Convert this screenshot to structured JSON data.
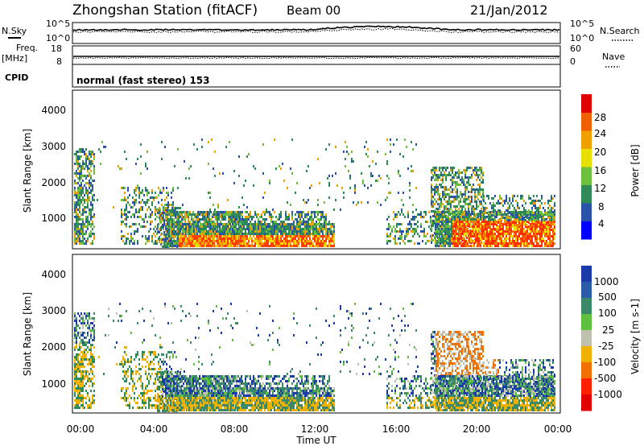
{
  "header": {
    "title": "Zhongshan Station (fitACF)",
    "beam": "Beam 00",
    "date": "21/Jan/2012"
  },
  "top_panels": {
    "nsky_label": "N.Sky",
    "nsearch_label": "N.Search",
    "nsky_ticks": [
      "10^5",
      "10^0"
    ],
    "nsearch_ticks": [
      "10^5",
      "10^0"
    ],
    "freq_label": "Freq.",
    "freq_unit": "[MHz]",
    "freq_ticks": [
      "18",
      "8"
    ],
    "nave_label": "Nave",
    "nave_ticks": [
      "60",
      "0"
    ],
    "cpid_label": "CPID",
    "cpid_text": "normal (fast stereo) 153"
  },
  "chart_data": [
    {
      "type": "heatmap",
      "name": "power",
      "ylabel": "Slant Range [km]",
      "yticks": [
        "4000",
        "3000",
        "2000",
        "1000"
      ],
      "ylim": [
        200,
        4500
      ],
      "colorbar_label": "Power [dB]",
      "colorbar_ticks": [
        "28",
        "24",
        "20",
        "16",
        "12",
        "8",
        "4"
      ],
      "colors": [
        "#0000ff",
        "#2a52a8",
        "#2e8b57",
        "#6fbf3f",
        "#e8e000",
        "#f0a000",
        "#f06000",
        "#e00000"
      ]
    },
    {
      "type": "heatmap",
      "name": "velocity",
      "ylabel": "Slant Range [km]",
      "yticks": [
        "4000",
        "3000",
        "2000",
        "1000"
      ],
      "ylim": [
        200,
        4500
      ],
      "colorbar_label": "Velocity [m s-1]",
      "colorbar_ticks": [
        "1000",
        "500",
        "100",
        "25",
        "-25",
        "-100",
        "-500",
        "-1000"
      ],
      "colors": [
        "#1c3aa8",
        "#2a5aa8",
        "#3a8a6a",
        "#5fbf3f",
        "#c0c0b0",
        "#f0b000",
        "#f07000",
        "#ff2000",
        "#e00000"
      ]
    }
  ],
  "x_axis": {
    "ticks": [
      "00:00",
      "04:00",
      "08:00",
      "12:00",
      "16:00",
      "20:00",
      "00:00"
    ],
    "label": "Time UT"
  }
}
